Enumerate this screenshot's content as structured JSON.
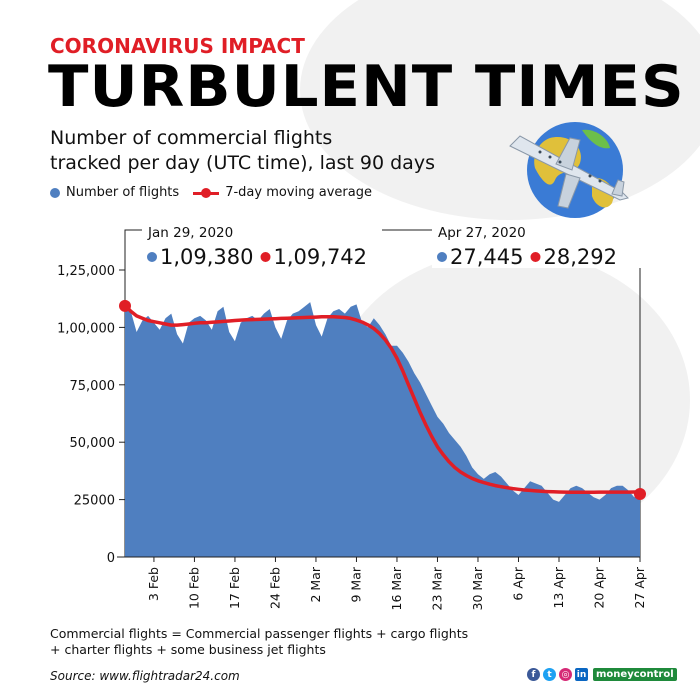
{
  "header": {
    "kicker": "CORONAVIRUS IMPACT",
    "title": "TURBULENT TIMES",
    "subtitle_line1": "Number of commercial flights",
    "subtitle_line2": "tracked per day (UTC time), last 90 days"
  },
  "legend": {
    "flights_label": "Number of flights",
    "average_label": "7-day moving average"
  },
  "colors": {
    "flights_area": "#4f7fc0",
    "moving_average": "#e01e26",
    "accent": "#e01e26"
  },
  "chart_data": {
    "type": "area",
    "title": "Number of commercial flights tracked per day (UTC time), last 90 days",
    "xlabel": "",
    "ylabel": "",
    "ylim": [
      0,
      125000
    ],
    "yticks": [
      0,
      25000,
      50000,
      75000,
      100000,
      125000
    ],
    "ytick_labels": [
      "0",
      "25000",
      "50,000",
      "75,000",
      "1,00,000",
      "1,25,000"
    ],
    "x_start": "Jan 29",
    "x_end": "Apr 27",
    "xtick_labels": [
      "3 Feb",
      "10 Feb",
      "17 Feb",
      "24 Feb",
      "2 Mar",
      "9 Mar",
      "16 Mar",
      "23 Mar",
      "30 Mar",
      "6 Apr",
      "13 Apr",
      "20 Apr",
      "27 Apr"
    ],
    "xtick_day_index": [
      5,
      12,
      19,
      26,
      33,
      40,
      47,
      54,
      61,
      68,
      75,
      82,
      89
    ],
    "grid": false,
    "legend_position": "top-left",
    "series": [
      {
        "name": "Number of flights",
        "kind": "area",
        "values": [
          109380,
          107000,
          98000,
          103000,
          105000,
          102000,
          99000,
          104000,
          106000,
          97000,
          93000,
          102000,
          104000,
          105000,
          103000,
          99000,
          107000,
          109000,
          98000,
          94000,
          102000,
          104000,
          105000,
          103000,
          106000,
          108000,
          100000,
          95000,
          103000,
          106000,
          107000,
          109000,
          111000,
          101000,
          96000,
          104000,
          107000,
          108000,
          106000,
          109000,
          110000,
          102000,
          100000,
          104000,
          101000,
          97000,
          92000,
          92000,
          89000,
          85000,
          80000,
          76000,
          71000,
          66000,
          61000,
          58000,
          54000,
          51000,
          48000,
          44000,
          39000,
          36000,
          34000,
          36000,
          37000,
          35000,
          32000,
          29000,
          27000,
          30000,
          33000,
          32000,
          31000,
          28000,
          25000,
          24000,
          27000,
          30000,
          31000,
          30000,
          28000,
          26000,
          25000,
          27000,
          30000,
          31000,
          31000,
          29000,
          26000,
          27445
        ]
      },
      {
        "name": "7-day moving average",
        "kind": "line",
        "values": [
          109742,
          107000,
          105000,
          104000,
          103000,
          102500,
          102000,
          101500,
          101000,
          101000,
          101200,
          101500,
          101800,
          102000,
          102000,
          102200,
          102400,
          102600,
          102800,
          103000,
          103200,
          103300,
          103400,
          103500,
          103600,
          103700,
          103800,
          103900,
          104000,
          104100,
          104200,
          104300,
          104400,
          104500,
          104600,
          104600,
          104600,
          104500,
          104300,
          103900,
          103200,
          102300,
          101100,
          99500,
          97300,
          94500,
          91000,
          86500,
          81000,
          75000,
          69000,
          63000,
          57500,
          52500,
          48000,
          44500,
          41500,
          39000,
          37000,
          35500,
          34200,
          33200,
          32400,
          31700,
          31100,
          30600,
          30200,
          29800,
          29500,
          29200,
          29000,
          28800,
          28600,
          28500,
          28400,
          28300,
          28250,
          28200,
          28200,
          28200,
          28200,
          28200,
          28250,
          28250,
          28250,
          28260,
          28270,
          28280,
          28290,
          28292
        ]
      }
    ],
    "annotations": [
      {
        "date": "Jan 29, 2020",
        "flights": "1,09,380",
        "average": "1,09,742"
      },
      {
        "date": "Apr 27, 2020",
        "flights": "27,445",
        "average": "28,292"
      }
    ]
  },
  "footer": {
    "note_line1": "Commercial flights = Commercial passenger flights + cargo flights",
    "note_line2": "+ charter flights + some business jet flights",
    "source": "Source: www.flightradar24.com",
    "brand": "moneycontrol",
    "social_icons": [
      "facebook-icon",
      "twitter-icon",
      "instagram-icon",
      "linkedin-icon"
    ]
  }
}
